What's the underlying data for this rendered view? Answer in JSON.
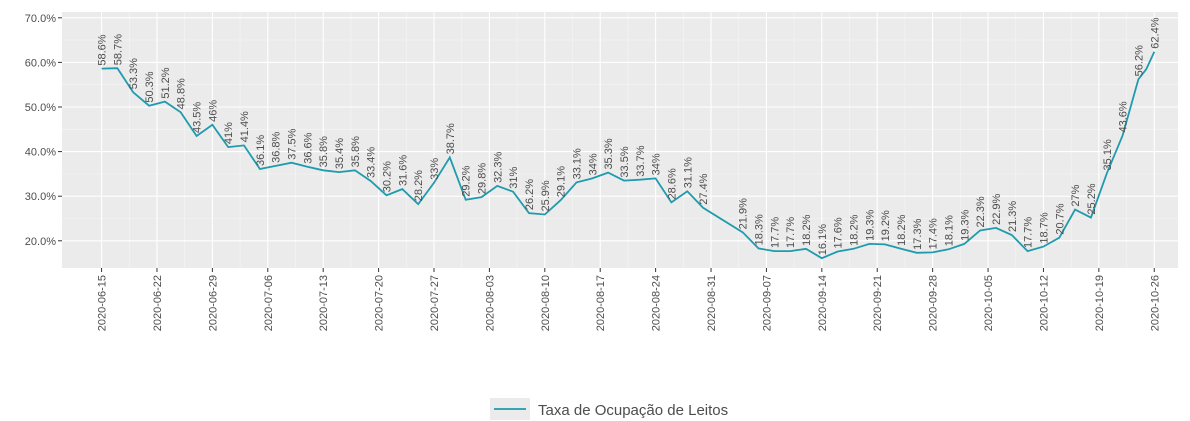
{
  "chart_data": {
    "type": "line",
    "x": [
      "2020-06-15",
      "2020-06-17",
      "2020-06-19",
      "2020-06-21",
      "2020-06-23",
      "2020-06-25",
      "2020-06-27",
      "2020-06-29",
      "2020-07-01",
      "2020-07-03",
      "2020-07-05",
      "2020-07-07",
      "2020-07-09",
      "2020-07-11",
      "2020-07-13",
      "2020-07-15",
      "2020-07-17",
      "2020-07-19",
      "2020-07-21",
      "2020-07-23",
      "2020-07-25",
      "2020-07-27",
      "2020-07-29",
      "2020-07-31",
      "2020-08-02",
      "2020-08-04",
      "2020-08-06",
      "2020-08-08",
      "2020-08-10",
      "2020-08-12",
      "2020-08-14",
      "2020-08-16",
      "2020-08-18",
      "2020-08-20",
      "2020-08-22",
      "2020-08-24",
      "2020-08-26",
      "2020-08-28",
      "2020-08-30",
      "2020-09-04",
      "2020-09-06",
      "2020-09-08",
      "2020-09-10",
      "2020-09-12",
      "2020-09-14",
      "2020-09-16",
      "2020-09-18",
      "2020-09-20",
      "2020-09-22",
      "2020-09-24",
      "2020-09-26",
      "2020-09-28",
      "2020-09-30",
      "2020-10-02",
      "2020-10-04",
      "2020-10-06",
      "2020-10-08",
      "2020-10-10",
      "2020-10-12",
      "2020-10-14",
      "2020-10-16",
      "2020-10-18",
      "2020-10-20",
      "2020-10-22",
      "2020-10-24",
      "2020-10-25",
      "2020-10-26"
    ],
    "series": [
      {
        "name": "Taxa de Ocupação de Leitos",
        "color": "#1f9bad",
        "values": [
          58.6,
          58.7,
          53.3,
          50.3,
          51.2,
          48.8,
          43.5,
          46,
          41,
          41.4,
          36.1,
          36.8,
          37.5,
          36.6,
          35.8,
          35.4,
          35.8,
          33.4,
          30.2,
          31.6,
          28.2,
          33,
          38.7,
          29.2,
          29.8,
          32.3,
          31,
          26.2,
          25.9,
          29.1,
          33.1,
          34,
          35.3,
          33.5,
          33.7,
          34,
          28.6,
          31.1,
          27.4,
          21.9,
          18.3,
          17.7,
          17.7,
          18.2,
          16.1,
          17.6,
          18.2,
          19.3,
          19.2,
          18.2,
          17.3,
          17.4,
          18.1,
          19.3,
          22.3,
          22.9,
          21.3,
          17.7,
          18.7,
          20.7,
          27,
          25.2,
          35.1,
          43.6,
          56.2,
          58.5,
          62.4
        ],
        "value_labels": [
          "58.6%",
          "58.7%",
          "53.3%",
          "50.3%",
          "51.2%",
          "48.8%",
          "43.5%",
          "46%",
          "41%",
          "41.4%",
          "36.1%",
          "36.8%",
          "37.5%",
          "36.6%",
          "35.8%",
          "35.4%",
          "35.8%",
          "33.4%",
          "30.2%",
          "31.6%",
          "28.2%",
          "33%",
          "38.7%",
          "29.2%",
          "29.8%",
          "32.3%",
          "31%",
          "26.2%",
          "25.9%",
          "29.1%",
          "33.1%",
          "34%",
          "35.3%",
          "33.5%",
          "33.7%",
          "34%",
          "28.6%",
          "31.1%",
          "27.4%",
          "21.9%",
          "18.3%",
          "17.7%",
          "17.7%",
          "18.2%",
          "16.1%",
          "17.6%",
          "18.2%",
          "19.3%",
          "19.2%",
          "18.2%",
          "17.3%",
          "17.4%",
          "18.1%",
          "19.3%",
          "22.3%",
          "22.9%",
          "21.3%",
          "17.7%",
          "18.7%",
          "20.7%",
          "27%",
          "25.2%",
          "35.1%",
          "43.6%",
          "56.2%",
          null,
          "62.4%"
        ]
      }
    ],
    "xlim": [
      "2020-06-10",
      "2020-10-29"
    ],
    "xticks": [
      "2020-06-15",
      "2020-06-22",
      "2020-06-29",
      "2020-07-06",
      "2020-07-13",
      "2020-07-20",
      "2020-07-27",
      "2020-08-03",
      "2020-08-10",
      "2020-08-17",
      "2020-08-24",
      "2020-08-31",
      "2020-09-07",
      "2020-09-14",
      "2020-09-21",
      "2020-09-28",
      "2020-10-05",
      "2020-10-12",
      "2020-10-19",
      "2020-10-26"
    ],
    "ylim": [
      13.9,
      71.3
    ],
    "yticks": [
      {
        "value": 20,
        "label": "20.0%"
      },
      {
        "value": 30,
        "label": "30.0%"
      },
      {
        "value": 40,
        "label": "40.0%"
      },
      {
        "value": 50,
        "label": "50.0%"
      },
      {
        "value": 60,
        "label": "60.0%"
      },
      {
        "value": 70,
        "label": "70.0%"
      }
    ],
    "grid": true,
    "legend": "bottom"
  }
}
